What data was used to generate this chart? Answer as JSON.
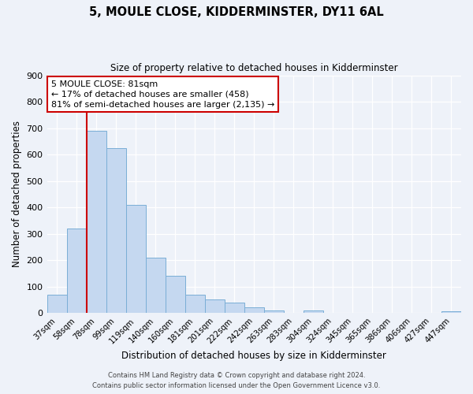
{
  "title_line1": "5, MOULE CLOSE, KIDDERMINSTER, DY11 6AL",
  "title_line2": "Size of property relative to detached houses in Kidderminster",
  "xlabel": "Distribution of detached houses by size in Kidderminster",
  "ylabel": "Number of detached properties",
  "bar_labels": [
    "37sqm",
    "58sqm",
    "78sqm",
    "99sqm",
    "119sqm",
    "140sqm",
    "160sqm",
    "181sqm",
    "201sqm",
    "222sqm",
    "242sqm",
    "263sqm",
    "283sqm",
    "304sqm",
    "324sqm",
    "345sqm",
    "365sqm",
    "386sqm",
    "406sqm",
    "427sqm",
    "447sqm"
  ],
  "bar_values": [
    70,
    320,
    690,
    625,
    410,
    210,
    140,
    68,
    50,
    38,
    22,
    10,
    0,
    10,
    0,
    0,
    0,
    0,
    0,
    0,
    5
  ],
  "bar_color": "#c5d8f0",
  "bar_edge_color": "#7aaed6",
  "vline_index": 2,
  "vline_color": "#cc0000",
  "annotation_title": "5 MOULE CLOSE: 81sqm",
  "annotation_line1": "← 17% of detached houses are smaller (458)",
  "annotation_line2": "81% of semi-detached houses are larger (2,135) →",
  "annotation_box_color": "#ffffff",
  "annotation_box_edge": "#cc0000",
  "ylim": [
    0,
    900
  ],
  "yticks": [
    0,
    100,
    200,
    300,
    400,
    500,
    600,
    700,
    800,
    900
  ],
  "footer_line1": "Contains HM Land Registry data © Crown copyright and database right 2024.",
  "footer_line2": "Contains public sector information licensed under the Open Government Licence v3.0.",
  "bg_color": "#eef2f9",
  "plot_bg_color": "#eef2f9",
  "grid_color": "#ffffff"
}
